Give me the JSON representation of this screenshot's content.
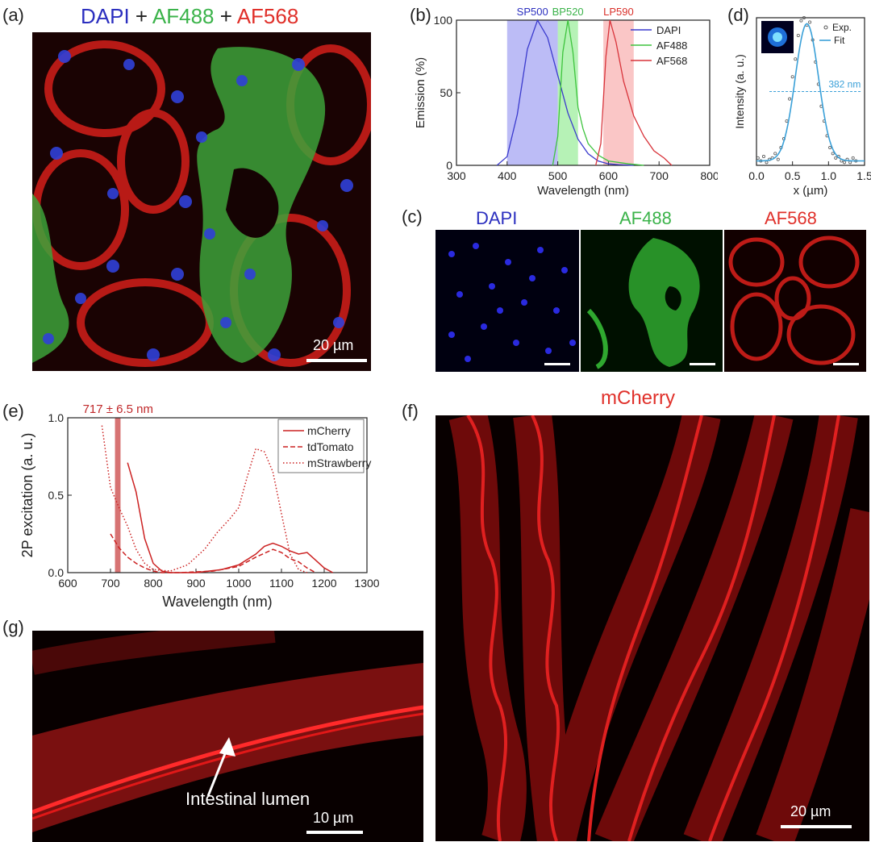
{
  "panels": {
    "a": {
      "label": "(a)",
      "title_parts": [
        {
          "text": "DAPI",
          "color": "#2b2fbf"
        },
        {
          "text": " + ",
          "color": "#222222"
        },
        {
          "text": "AF488",
          "color": "#3bb34a"
        },
        {
          "text": " + ",
          "color": "#222222"
        },
        {
          "text": "AF568",
          "color": "#e0302a"
        }
      ],
      "scale": "20 µm"
    },
    "b": {
      "label": "(b)"
    },
    "c": {
      "label": "(c)",
      "channels": [
        {
          "name": "DAPI",
          "color": "#2b2fbf"
        },
        {
          "name": "AF488",
          "color": "#3bb34a"
        },
        {
          "name": "AF568",
          "color": "#e0302a"
        }
      ]
    },
    "d": {
      "label": "(d)"
    },
    "e": {
      "label": "(e)"
    },
    "f": {
      "label": "(f)",
      "title": "mCherry",
      "scale": "20 µm"
    },
    "g": {
      "label": "(g)",
      "annotation": "Intestinal lumen",
      "scale": "10 µm"
    }
  },
  "chart_data": [
    {
      "panel": "b",
      "type": "line",
      "xlabel": "Wavelength (nm)",
      "ylabel": "Emission (%)",
      "xlim": [
        300,
        800
      ],
      "ylim": [
        0,
        100
      ],
      "xticks": [
        300,
        400,
        500,
        600,
        700,
        800
      ],
      "yticks": [
        0,
        50,
        100
      ],
      "filters": [
        {
          "name": "SP500",
          "range": [
            400,
            500
          ],
          "color": "#8f8ff0",
          "label_color": "#2b2fbf"
        },
        {
          "name": "BP520",
          "range": [
            500,
            540
          ],
          "color": "#86ea86",
          "label_color": "#3bb34a"
        },
        {
          "name": "LP590",
          "range": [
            590,
            650
          ],
          "color": "#f6a0a0",
          "label_color": "#d9302a"
        }
      ],
      "series": [
        {
          "name": "DAPI",
          "color": "#3a3acd",
          "x": [
            380,
            400,
            420,
            440,
            460,
            480,
            500,
            520,
            540,
            560,
            580,
            600,
            620,
            650
          ],
          "y": [
            0,
            6,
            35,
            80,
            100,
            88,
            62,
            36,
            18,
            8,
            3,
            1,
            0.5,
            0
          ]
        },
        {
          "name": "AF488",
          "color": "#3ec43e",
          "x": [
            490,
            500,
            510,
            520,
            530,
            540,
            550,
            560,
            580,
            600,
            640,
            670
          ],
          "y": [
            0,
            20,
            78,
            100,
            78,
            40,
            25,
            15,
            7,
            3,
            1,
            0
          ]
        },
        {
          "name": "AF568",
          "color": "#d8333a",
          "x": [
            575,
            585,
            595,
            603,
            615,
            630,
            650,
            670,
            690,
            710,
            725
          ],
          "y": [
            0,
            15,
            75,
            100,
            85,
            58,
            34,
            20,
            10,
            5,
            0
          ]
        }
      ],
      "legend": "top-right"
    },
    {
      "panel": "d",
      "type": "scatter",
      "xlabel": "x (µm)",
      "ylabel": "Intensity (a. u.)",
      "xlim": [
        0,
        1.5
      ],
      "xticks": [
        0.0,
        0.5,
        1.0,
        1.5
      ],
      "annotation": "382 nm",
      "fwhm_level": 0.5,
      "series": [
        {
          "name": "Exp.",
          "style": "points",
          "color": "#555555",
          "x": [
            0.02,
            0.06,
            0.1,
            0.14,
            0.18,
            0.22,
            0.26,
            0.3,
            0.34,
            0.38,
            0.42,
            0.46,
            0.5,
            0.54,
            0.58,
            0.62,
            0.66,
            0.7,
            0.74,
            0.78,
            0.82,
            0.86,
            0.9,
            0.94,
            0.98,
            1.02,
            1.06,
            1.1,
            1.14,
            1.18,
            1.22,
            1.26,
            1.3,
            1.34,
            1.38
          ],
          "y": [
            0.05,
            0.03,
            0.06,
            0.02,
            0.04,
            0.05,
            0.08,
            0.04,
            0.12,
            0.18,
            0.3,
            0.45,
            0.6,
            0.72,
            0.88,
            0.98,
            1.0,
            0.95,
            0.97,
            0.85,
            0.7,
            0.55,
            0.4,
            0.3,
            0.2,
            0.12,
            0.08,
            0.05,
            0.06,
            0.03,
            0.02,
            0.04,
            0.02,
            0.05,
            0.03
          ]
        },
        {
          "name": "Fit",
          "style": "line",
          "color": "#3aa0d8",
          "gaussian": {
            "mu": 0.7,
            "sigma": 0.162,
            "amp": 0.93,
            "base": 0.03
          }
        }
      ],
      "legend": "top-right"
    },
    {
      "panel": "e",
      "type": "line",
      "xlabel": "Wavelength (nm)",
      "ylabel": "2P excitation (a. u.)",
      "xlim": [
        600,
        1300
      ],
      "ylim": [
        0,
        1.0
      ],
      "xticks": [
        600,
        700,
        800,
        900,
        1000,
        1100,
        1200,
        1300
      ],
      "yticks": [
        0.0,
        0.5,
        1.0
      ],
      "highlight": {
        "label": "717 ± 6.5 nm",
        "range": [
          710.5,
          723.5
        ],
        "color": "#d05a5a"
      },
      "series": [
        {
          "name": "mCherry",
          "dash": "solid",
          "color": "#cc2222",
          "x": [
            740,
            760,
            780,
            800,
            820,
            840,
            900,
            960,
            1000,
            1040,
            1060,
            1080,
            1100,
            1120,
            1140,
            1160,
            1180,
            1200,
            1220
          ],
          "y": [
            0.71,
            0.52,
            0.22,
            0.06,
            0.01,
            0,
            0,
            0.02,
            0.05,
            0.12,
            0.17,
            0.19,
            0.17,
            0.14,
            0.12,
            0.13,
            0.08,
            0.03,
            0
          ]
        },
        {
          "name": "tdTomato",
          "dash": "dashed",
          "color": "#cc2222",
          "x": [
            700,
            720,
            740,
            760,
            780,
            800,
            820,
            860,
            940,
            1000,
            1040,
            1080,
            1100,
            1120,
            1140,
            1160,
            1180
          ],
          "y": [
            0.25,
            0.16,
            0.1,
            0.06,
            0.03,
            0.01,
            0,
            0,
            0.01,
            0.04,
            0.1,
            0.15,
            0.13,
            0.09,
            0.07,
            0.03,
            0
          ]
        },
        {
          "name": "mStrawberry",
          "dash": "dotted",
          "color": "#cc2222",
          "x": [
            680,
            700,
            720,
            740,
            760,
            780,
            800,
            840,
            880,
            920,
            950,
            980,
            1000,
            1020,
            1040,
            1060,
            1080,
            1100,
            1120,
            1140,
            1160
          ],
          "y": [
            0.95,
            0.55,
            0.42,
            0.3,
            0.15,
            0.06,
            0.02,
            0.01,
            0.05,
            0.15,
            0.26,
            0.35,
            0.42,
            0.62,
            0.8,
            0.78,
            0.65,
            0.38,
            0.12,
            0.02,
            0
          ]
        }
      ],
      "legend": "top-right"
    }
  ]
}
